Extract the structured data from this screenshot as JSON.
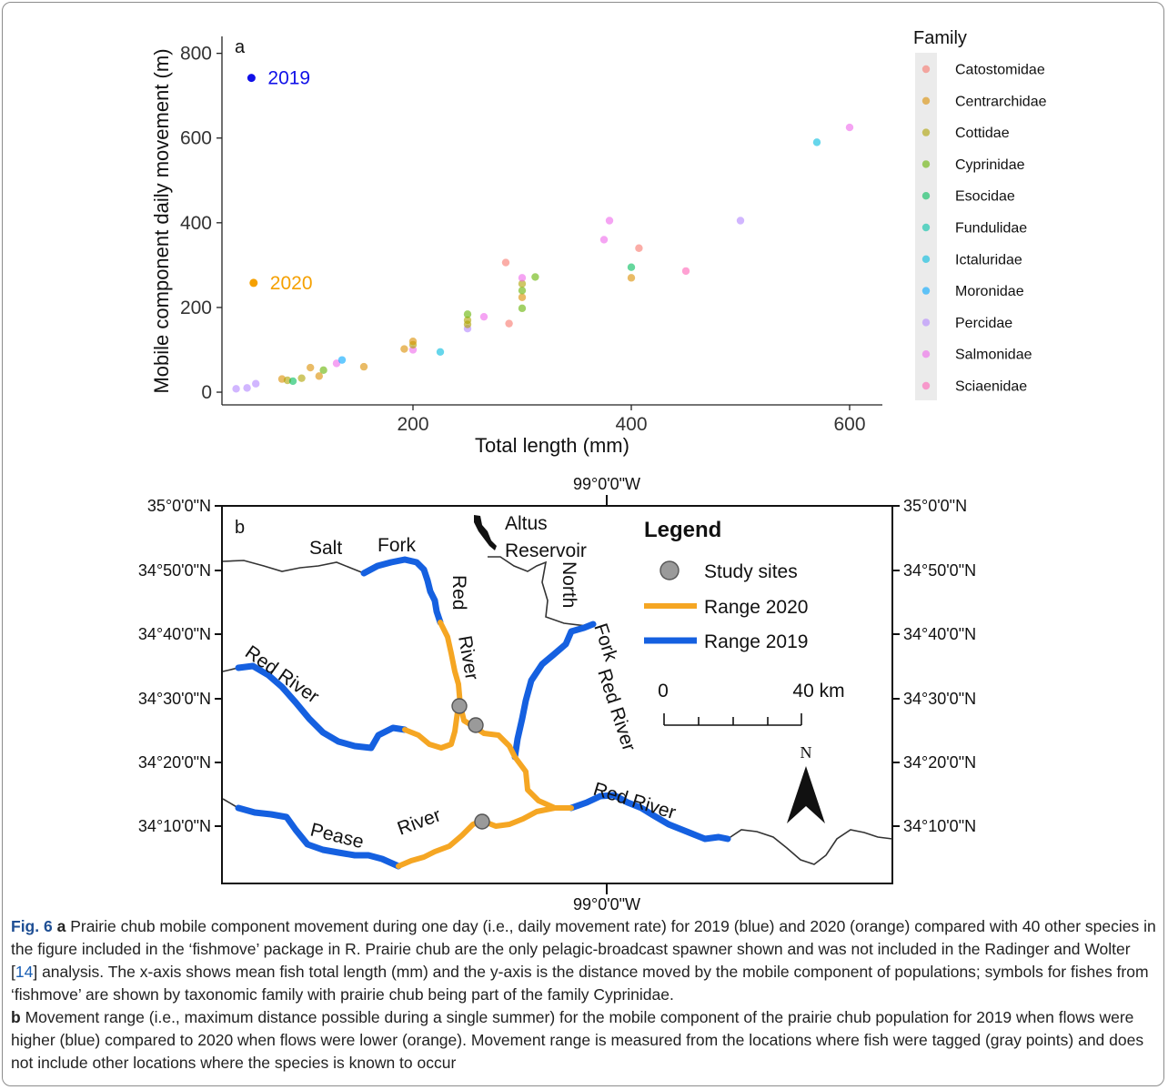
{
  "chart_data": {
    "type": "scatter",
    "panel_label": "a",
    "xlabel": "Total length (mm)",
    "ylabel": "Mobile component daily movement (m)",
    "xlim": [
      25,
      630
    ],
    "ylim": [
      -30,
      840
    ],
    "xticks": [
      200,
      400,
      600
    ],
    "yticks": [
      0,
      200,
      400,
      600,
      800
    ],
    "grid": false,
    "legend": {
      "title": "Family",
      "position": "right"
    },
    "families": [
      {
        "name": "Catostomidae",
        "color": "#F8766D"
      },
      {
        "name": "Centrarchidae",
        "color": "#DB8E00"
      },
      {
        "name": "Cottidae",
        "color": "#AEA200"
      },
      {
        "name": "Cyprinidae",
        "color": "#64B200"
      },
      {
        "name": "Esocidae",
        "color": "#00BD5C"
      },
      {
        "name": "Fundulidae",
        "color": "#00C1A7"
      },
      {
        "name": "Ictaluridae",
        "color": "#00BADE"
      },
      {
        "name": "Moronidae",
        "color": "#00A6FF"
      },
      {
        "name": "Percidae",
        "color": "#B385FF"
      },
      {
        "name": "Salmonidae",
        "color": "#EF67EB"
      },
      {
        "name": "Sciaenidae",
        "color": "#FF63B6"
      }
    ],
    "points": [
      {
        "x": 38,
        "y": 8,
        "family": "Percidae"
      },
      {
        "x": 48,
        "y": 10,
        "family": "Percidae"
      },
      {
        "x": 56,
        "y": 20,
        "family": "Percidae"
      },
      {
        "x": 80,
        "y": 31,
        "family": "Centrarchidae"
      },
      {
        "x": 85,
        "y": 28,
        "family": "Cottidae"
      },
      {
        "x": 90,
        "y": 26,
        "family": "Esocidae"
      },
      {
        "x": 98,
        "y": 33,
        "family": "Cottidae"
      },
      {
        "x": 106,
        "y": 58,
        "family": "Centrarchidae"
      },
      {
        "x": 114,
        "y": 38,
        "family": "Centrarchidae"
      },
      {
        "x": 118,
        "y": 52,
        "family": "Cyprinidae"
      },
      {
        "x": 130,
        "y": 68,
        "family": "Salmonidae"
      },
      {
        "x": 135,
        "y": 76,
        "family": "Moronidae"
      },
      {
        "x": 155,
        "y": 60,
        "family": "Centrarchidae"
      },
      {
        "x": 192,
        "y": 102,
        "family": "Centrarchidae"
      },
      {
        "x": 200,
        "y": 100,
        "family": "Salmonidae"
      },
      {
        "x": 200,
        "y": 112,
        "family": "Cottidae"
      },
      {
        "x": 200,
        "y": 120,
        "family": "Centrarchidae"
      },
      {
        "x": 225,
        "y": 95,
        "family": "Ictaluridae"
      },
      {
        "x": 250,
        "y": 150,
        "family": "Percidae"
      },
      {
        "x": 250,
        "y": 160,
        "family": "Cottidae"
      },
      {
        "x": 250,
        "y": 170,
        "family": "Cottidae"
      },
      {
        "x": 250,
        "y": 184,
        "family": "Cyprinidae"
      },
      {
        "x": 265,
        "y": 178,
        "family": "Salmonidae"
      },
      {
        "x": 285,
        "y": 306,
        "family": "Catostomidae"
      },
      {
        "x": 288,
        "y": 162,
        "family": "Catostomidae"
      },
      {
        "x": 300,
        "y": 198,
        "family": "Cyprinidae"
      },
      {
        "x": 300,
        "y": 224,
        "family": "Centrarchidae"
      },
      {
        "x": 300,
        "y": 240,
        "family": "Cyprinidae"
      },
      {
        "x": 300,
        "y": 256,
        "family": "Cottidae"
      },
      {
        "x": 300,
        "y": 270,
        "family": "Salmonidae"
      },
      {
        "x": 312,
        "y": 272,
        "family": "Cyprinidae"
      },
      {
        "x": 375,
        "y": 360,
        "family": "Salmonidae"
      },
      {
        "x": 380,
        "y": 405,
        "family": "Salmonidae"
      },
      {
        "x": 400,
        "y": 270,
        "family": "Centrarchidae"
      },
      {
        "x": 400,
        "y": 295,
        "family": "Esocidae"
      },
      {
        "x": 407,
        "y": 340,
        "family": "Catostomidae"
      },
      {
        "x": 450,
        "y": 286,
        "family": "Sciaenidae"
      },
      {
        "x": 500,
        "y": 405,
        "family": "Percidae"
      },
      {
        "x": 570,
        "y": 590,
        "family": "Ictaluridae"
      },
      {
        "x": 600,
        "y": 625,
        "family": "Salmonidae"
      }
    ],
    "highlight": [
      {
        "x": 52,
        "y": 742,
        "label": "2019",
        "color": "#1010e8"
      },
      {
        "x": 54,
        "y": 258,
        "label": "2020",
        "color": "#F5A000"
      }
    ]
  },
  "map": {
    "panel_label": "b",
    "longitude_label": "99°0'0\"W",
    "latitude_labels": [
      "35°0'0\"N",
      "34°50'0\"N",
      "34°40'0\"N",
      "34°30'0\"N",
      "34°20'0\"N",
      "34°10'0\"N"
    ],
    "river_labels": [
      "Salt",
      "Fork",
      "Red",
      "River",
      "North",
      "Fork",
      "Red River",
      "Red River",
      "Red River",
      "Pease",
      "River"
    ],
    "place_labels": [
      "Altus",
      "Reservoir"
    ],
    "legend": {
      "title": "Legend",
      "items": [
        {
          "label": "Study sites",
          "color": "#9a9a9a"
        },
        {
          "label": "Range 2020",
          "color": "#F5A623"
        },
        {
          "label": "Range 2019",
          "color": "#1560E0"
        }
      ]
    },
    "scale_bar": {
      "start": "0",
      "end": "40 km"
    },
    "north_arrow": "N"
  },
  "caption": {
    "fig_label": "Fig. 6",
    "a_label": "a",
    "b_label": "b",
    "part_a_1": "Prairie chub mobile component movement during one day (i.e., daily movement rate) for 2019 (blue) and 2020 (orange) compared with 40 other species in the figure included in the ‘fishmove’ package in R. Prairie chub are the only pelagic-broadcast spawner shown and was not included in the Radinger and Wolter [",
    "ref": "14",
    "part_a_2": "] analysis. The x-axis shows mean fish total length (mm) and the y-axis is the distance moved by the mobile component of populations; symbols for fishes from ‘fishmove’ are shown by taxonomic family with prairie chub being part of the family Cyprinidae.",
    "part_b": "Movement range (i.e., maximum distance possible during a single summer) for the mobile component of the prairie chub population for 2019 when flows were higher (blue) compared to 2020 when flows were lower (orange). Movement range is measured from the locations where fish were tagged (gray points) and does not include other locations where the species is known to occur"
  }
}
